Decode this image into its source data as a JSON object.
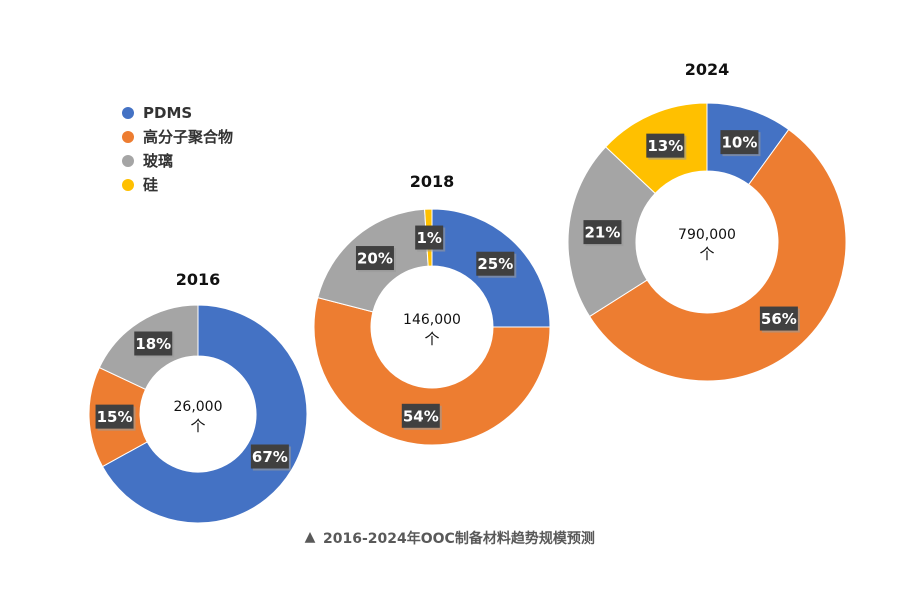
{
  "chart_data": {
    "type": "pie",
    "subtype": "donut",
    "title": "2016-2024年OOC制备材料趋势规模预测",
    "caption_marker": "▲",
    "legend": [
      {
        "name": "PDMS",
        "color": "#4472C4"
      },
      {
        "name": "高分子聚合物",
        "color": "#ED7D31"
      },
      {
        "name": "玻璃",
        "color": "#A5A5A5"
      },
      {
        "name": "硅",
        "color": "#FFC000"
      }
    ],
    "legend_position": "top-left",
    "charts": [
      {
        "year": "2016",
        "total_label": "26,000",
        "unit": "个",
        "slices": [
          {
            "name": "PDMS",
            "value": 67,
            "label": "67%"
          },
          {
            "name": "高分子聚合物",
            "value": 15,
            "label": "15%"
          },
          {
            "name": "玻璃",
            "value": 18,
            "label": "18%"
          },
          {
            "name": "硅",
            "value": 0,
            "label": ""
          }
        ]
      },
      {
        "year": "2018",
        "total_label": "146,000",
        "unit": "个",
        "slices": [
          {
            "name": "PDMS",
            "value": 25,
            "label": "25%"
          },
          {
            "name": "高分子聚合物",
            "value": 54,
            "label": "54%"
          },
          {
            "name": "玻璃",
            "value": 20,
            "label": "20%"
          },
          {
            "name": "硅",
            "value": 1,
            "label": "1%"
          }
        ]
      },
      {
        "year": "2024",
        "total_label": "790,000",
        "unit": "个",
        "slices": [
          {
            "name": "PDMS",
            "value": 10,
            "label": "10%"
          },
          {
            "name": "高分子聚合物",
            "value": 56,
            "label": "56%"
          },
          {
            "name": "玻璃",
            "value": 21,
            "label": "21%"
          },
          {
            "name": "硅",
            "value": 13,
            "label": "13%"
          }
        ]
      }
    ]
  }
}
